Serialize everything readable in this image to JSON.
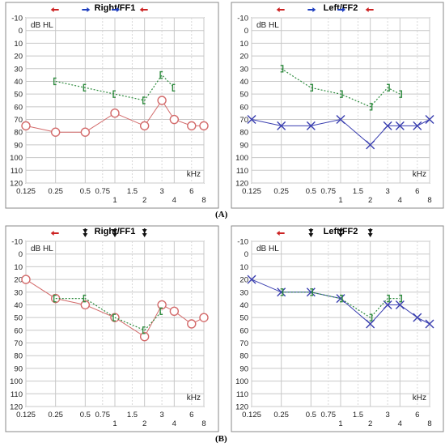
{
  "labels": {
    "panel_a": "(A)",
    "panel_b": "(B)"
  },
  "y_ticks": [
    "-10",
    "0",
    "10",
    "20",
    "30",
    "40",
    "50",
    "60",
    "70",
    "80",
    "90",
    "100",
    "110",
    "120"
  ],
  "x_ticks_top": [
    "0.125",
    "0.25",
    "0.5",
    "0.75",
    "1.5",
    "3",
    "6"
  ],
  "x_ticks_bottom": [
    "1",
    "2",
    "4",
    "8"
  ],
  "chart_data": [
    {
      "id": "A-right",
      "type": "line",
      "title": "Right/FF1",
      "ylabel": "dB HL",
      "xlabel": "kHz",
      "ylim": [
        -10,
        120
      ],
      "x_axis": "frequency (octave scale)",
      "y_inverted": true,
      "header_arrows": [
        {
          "x": 0.25,
          "color": "#cc2222",
          "dir": "left"
        },
        {
          "x": 0.5,
          "color": "#1f3fbf",
          "dir": "right"
        },
        {
          "x": 1,
          "color": "#1f3fbf",
          "dir": "right"
        },
        {
          "x": 2,
          "color": "#cc2222",
          "dir": "left"
        }
      ],
      "series": [
        {
          "marker": "circle",
          "color": "#d36b6b",
          "line": "solid",
          "x": [
            0.125,
            0.25,
            0.5,
            1,
            2,
            3,
            4,
            6,
            8
          ],
          "y": [
            75,
            80,
            80,
            65,
            75,
            55,
            70,
            75,
            75
          ]
        },
        {
          "marker": "bracket-open",
          "color": "#2e8b3e",
          "line": "dotted",
          "x": [
            0.25,
            0.5,
            1,
            2,
            3,
            4
          ],
          "y": [
            40,
            45,
            50,
            55,
            35,
            45
          ]
        }
      ]
    },
    {
      "id": "A-left",
      "type": "line",
      "title": "Left/FF2",
      "ylabel": "dB HL",
      "xlabel": "kHz",
      "ylim": [
        -10,
        120
      ],
      "x_axis": "frequency (octave scale)",
      "y_inverted": true,
      "header_arrows": [
        {
          "x": 0.25,
          "color": "#cc2222",
          "dir": "left"
        },
        {
          "x": 0.5,
          "color": "#1f3fbf",
          "dir": "right"
        },
        {
          "x": 1,
          "color": "#1f3fbf",
          "dir": "right"
        },
        {
          "x": 2,
          "color": "#cc2222",
          "dir": "left"
        }
      ],
      "series": [
        {
          "marker": "cross",
          "color": "#3a3fb0",
          "line": "solid",
          "x": [
            0.125,
            0.25,
            0.5,
            1,
            2,
            3,
            4,
            6,
            8
          ],
          "y": [
            70,
            75,
            75,
            70,
            90,
            75,
            75,
            75,
            70
          ]
        },
        {
          "marker": "bracket-close",
          "color": "#2e8b3e",
          "line": "dotted",
          "x": [
            0.25,
            0.5,
            1,
            2,
            3,
            4
          ],
          "y": [
            30,
            45,
            50,
            60,
            45,
            50
          ]
        }
      ]
    },
    {
      "id": "B-right",
      "type": "line",
      "title": "Right/FF1",
      "ylabel": "dB HL",
      "xlabel": "kHz",
      "ylim": [
        -10,
        120
      ],
      "x_axis": "frequency (octave scale)",
      "y_inverted": true,
      "header_arrows": [
        {
          "x": 0.25,
          "color": "#cc2222",
          "dir": "left"
        },
        {
          "x": 0.5,
          "color": "#111111",
          "dir": "down"
        },
        {
          "x": 1,
          "color": "#111111",
          "dir": "down"
        },
        {
          "x": 2,
          "color": "#111111",
          "dir": "down"
        }
      ],
      "series": [
        {
          "marker": "circle",
          "color": "#d36b6b",
          "line": "solid",
          "x": [
            0.125,
            0.25,
            0.5,
            1,
            2,
            3,
            4,
            6,
            8
          ],
          "y": [
            20,
            35,
            40,
            50,
            65,
            40,
            45,
            55,
            50
          ]
        },
        {
          "marker": "bracket-open",
          "color": "#2e8b3e",
          "line": "dotted",
          "x": [
            0.25,
            0.5,
            1,
            2,
            3
          ],
          "y": [
            35,
            35,
            50,
            60,
            45
          ]
        }
      ]
    },
    {
      "id": "B-left",
      "type": "line",
      "title": "Left/FF2",
      "ylabel": "dB HL",
      "xlabel": "kHz",
      "ylim": [
        -10,
        120
      ],
      "x_axis": "frequency (octave scale)",
      "y_inverted": true,
      "header_arrows": [
        {
          "x": 0.25,
          "color": "#cc2222",
          "dir": "left"
        },
        {
          "x": 0.5,
          "color": "#111111",
          "dir": "down"
        },
        {
          "x": 1,
          "color": "#111111",
          "dir": "down"
        },
        {
          "x": 2,
          "color": "#111111",
          "dir": "down"
        }
      ],
      "series": [
        {
          "marker": "cross",
          "color": "#3a3fb0",
          "line": "solid",
          "x": [
            0.125,
            0.25,
            0.5,
            1,
            2,
            3,
            4,
            6,
            8
          ],
          "y": [
            20,
            30,
            30,
            35,
            55,
            40,
            40,
            50,
            55
          ]
        },
        {
          "marker": "bracket-close",
          "color": "#2e8b3e",
          "line": "dotted",
          "x": [
            0.25,
            0.5,
            1,
            2,
            3,
            4
          ],
          "y": [
            30,
            30,
            35,
            50,
            35,
            35
          ]
        }
      ]
    }
  ]
}
